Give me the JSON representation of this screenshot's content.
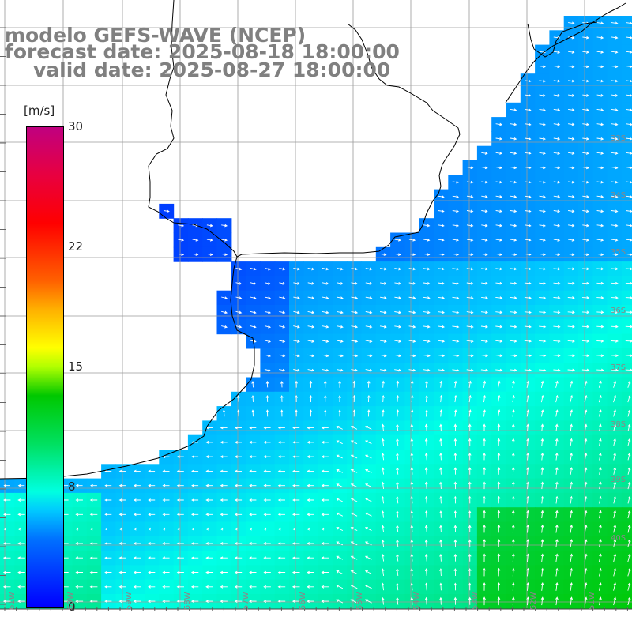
{
  "title": {
    "line1": "modelo GEFS-WAVE (NCEP)",
    "line2": "forecast date: 2025-08-18 18:00:00",
    "line3": "valid date: 2025-08-27 18:00:00"
  },
  "colorbar": {
    "unit": "[m/s]",
    "ticks": [
      "30",
      "22",
      "15",
      "8",
      "0"
    ],
    "tick_values": [
      30,
      22,
      15,
      8,
      0
    ]
  },
  "lat_labels": [
    "33S",
    "34S",
    "35S",
    "36S",
    "37S",
    "38S",
    "39S",
    "40S"
  ],
  "lon_labels": [
    "61W",
    "60W",
    "59W",
    "58W",
    "57W",
    "56W",
    "55W",
    "54W",
    "53W",
    "52W",
    "51W"
  ],
  "colors": {
    "land": "#ffffff",
    "coast": "#000000",
    "grid": "#9a9a9a",
    "arrow": "#ffffff",
    "title": "#808080"
  },
  "map_data": {
    "variable": "wind speed and direction",
    "units": "m/s",
    "scale_min": 0,
    "scale_max": 30
  }
}
